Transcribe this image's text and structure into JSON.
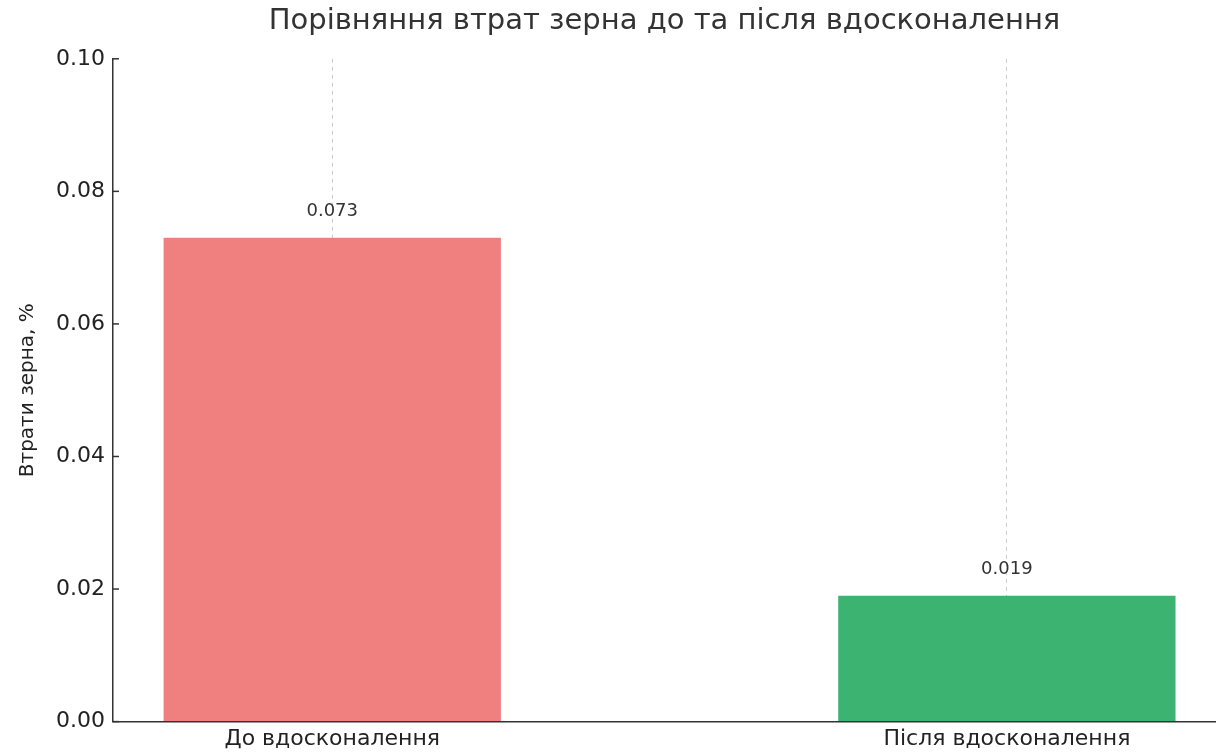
{
  "chart_data": {
    "type": "bar",
    "title": "Порівняння втрат зерна до та після вдосконалення",
    "ylabel": "Втрати зерна, %",
    "categories": [
      "До вдосконалення",
      "Після вдосконалення"
    ],
    "values": [
      0.073,
      0.019
    ],
    "colors": [
      "#f08080",
      "#3cb371"
    ],
    "ylim": [
      0,
      0.1
    ],
    "yticks": [
      {
        "value": 0,
        "label": "0.00"
      },
      0.02,
      0.04,
      0.06,
      0.08,
      {
        "value": 0.1,
        "label": "0.10"
      }
    ],
    "grid": "x",
    "data_labels": true
  }
}
